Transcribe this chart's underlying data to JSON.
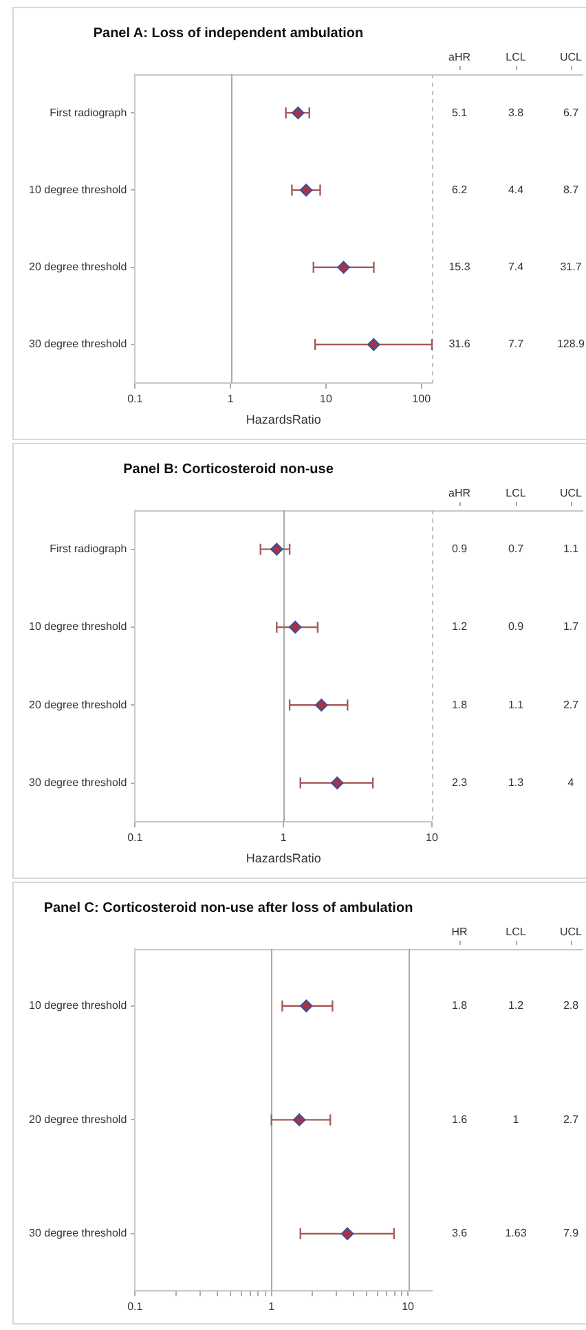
{
  "chart_data": [
    {
      "type": "scatter",
      "orientation": "horizontal",
      "title": "Panel A: Loss of independent ambulation",
      "xlabel": "HazardsRatio",
      "categories": [
        "First radiograph",
        "10 degree threshold",
        "20 degree threshold",
        "30 degree threshold"
      ],
      "values": [
        5.1,
        6.2,
        15.3,
        31.6
      ],
      "errors": [
        [
          3.8,
          6.7
        ],
        [
          4.4,
          8.7
        ],
        [
          7.4,
          31.7
        ],
        [
          7.7,
          128.9
        ]
      ],
      "color": "#b0303c",
      "marker": "diamond",
      "data_labels": true,
      "annotations": [
        "aHR",
        "LCL",
        "UCL",
        "3.8",
        "6.7",
        "4.4",
        "8.7",
        "7.4",
        "31.7",
        "7.7",
        "128.9"
      ],
      "log": "x",
      "xlim": [
        0.1,
        128.9
      ],
      "xticks": [
        0.1,
        1,
        10,
        100
      ],
      "ref_lines": [
        {
          "axis": "x",
          "value": 1,
          "color": "#a8a8a8",
          "line_style": "solid"
        },
        {
          "axis": "x",
          "value": 128.9,
          "color": "#c0c0c0",
          "line_style": "dashed"
        }
      ]
    },
    {
      "type": "scatter",
      "orientation": "horizontal",
      "title": "Panel B: Corticosteroid non-use",
      "xlabel": "HazardsRatio",
      "categories": [
        "First radiograph",
        "10 degree threshold",
        "20 degree threshold",
        "30 degree threshold"
      ],
      "values": [
        0.9,
        1.2,
        1.8,
        2.3
      ],
      "errors": [
        [
          0.7,
          1.1
        ],
        [
          0.9,
          1.7
        ],
        [
          1.1,
          2.7
        ],
        [
          1.3,
          4
        ]
      ],
      "color": "#b0303c",
      "marker": "diamond",
      "data_labels": true,
      "annotations": [
        "aHR",
        "LCL",
        "UCL",
        "0.7",
        "1.1",
        "0.9",
        "1.7",
        "1.1",
        "2.7",
        "1.3",
        "4"
      ],
      "log": "x",
      "xlim": [
        0.1,
        10
      ],
      "xticks": [
        0.1,
        1,
        10
      ],
      "ref_lines": [
        {
          "axis": "x",
          "value": 1,
          "color": "#a8a8a8",
          "line_style": "solid"
        },
        {
          "axis": "x",
          "value": 10,
          "color": "#c0c0c0",
          "line_style": "dashed"
        }
      ]
    },
    {
      "type": "scatter",
      "orientation": "horizontal",
      "title": "Panel C: Corticosteroid non-use after loss of ambulation",
      "categories": [
        "10 degree threshold",
        "20 degree threshold",
        "30 degree threshold"
      ],
      "values": [
        1.8,
        1.6,
        3.6
      ],
      "errors": [
        [
          1.2,
          2.8
        ],
        [
          1,
          2.7
        ],
        [
          1.63,
          7.9
        ]
      ],
      "color": "#b0303c",
      "marker": "diamond",
      "data_labels": true,
      "annotations": [
        "HR",
        "LCL",
        "UCL",
        "1.2",
        "2.8",
        "1",
        "2.7",
        "1.63",
        "7.9"
      ],
      "log": "x",
      "xlim": [
        0.1,
        15
      ],
      "xticks": [
        0.1,
        {
          "value": 0.2,
          "label": null
        },
        {
          "value": 0.3,
          "label": null
        },
        {
          "value": 0.4,
          "label": null
        },
        {
          "value": 0.5,
          "label": null
        },
        {
          "value": 0.6,
          "label": null
        },
        {
          "value": 0.7,
          "label": null
        },
        {
          "value": 0.8,
          "label": null
        },
        {
          "value": 0.9,
          "label": null
        },
        1,
        {
          "value": 2,
          "label": null
        },
        {
          "value": 3,
          "label": null
        },
        {
          "value": 4,
          "label": null
        },
        {
          "value": 5,
          "label": null
        },
        {
          "value": 6,
          "label": null
        },
        {
          "value": 7,
          "label": null
        },
        {
          "value": 8,
          "label": null
        },
        {
          "value": 9,
          "label": null
        },
        10
      ],
      "ref_lines": [
        {
          "axis": "x",
          "value": 1,
          "color": "#a8a8a8",
          "line_style": "solid"
        },
        {
          "axis": "x",
          "value": 10,
          "color": "#a8a8a8",
          "line_style": "solid"
        }
      ]
    }
  ]
}
